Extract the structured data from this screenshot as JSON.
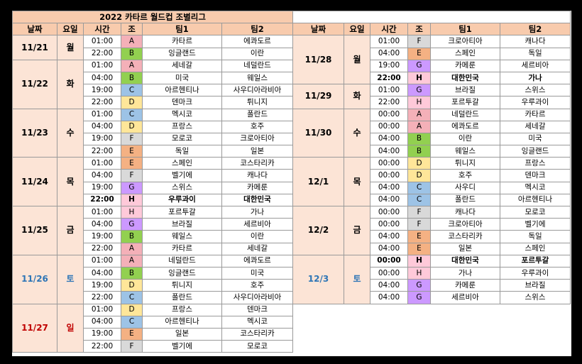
{
  "title": "2022 카타르 월드컵 조별리그",
  "headers": [
    "날짜",
    "요일",
    "시간",
    "조",
    "팀1",
    "팀2"
  ],
  "colors": {
    "A": "#f4b0b8",
    "B": "#92d050",
    "C": "#9dc3e6",
    "D": "#ffe699",
    "E": "#f4b183",
    "F": "#d9d9d9",
    "G": "#cc99ff",
    "H": "#ffc9d9",
    "saturday": "#2e75b6",
    "sunday": "#c00000",
    "header_bg": "#f8cbad",
    "date_bg": "#fce4d6"
  },
  "left": [
    {
      "date": "11/21",
      "day": "월",
      "color": "default",
      "matches": [
        {
          "time": "01:00",
          "group": "A",
          "team1": "카타르",
          "team2": "에콰도르"
        },
        {
          "time": "22:00",
          "group": "B",
          "team1": "잉글랜드",
          "team2": "이란"
        }
      ]
    },
    {
      "date": "11/22",
      "day": "화",
      "color": "default",
      "matches": [
        {
          "time": "01:00",
          "group": "A",
          "team1": "세네갈",
          "team2": "네덜란드"
        },
        {
          "time": "04:00",
          "group": "B",
          "team1": "미국",
          "team2": "웨일스"
        },
        {
          "time": "19:00",
          "group": "C",
          "team1": "아르헨티나",
          "team2": "사우디아라비아"
        },
        {
          "time": "22:00",
          "group": "D",
          "team1": "덴마크",
          "team2": "튀니지"
        }
      ]
    },
    {
      "date": "11/23",
      "day": "수",
      "color": "default",
      "matches": [
        {
          "time": "01:00",
          "group": "C",
          "team1": "멕시코",
          "team2": "폴란드"
        },
        {
          "time": "04:00",
          "group": "D",
          "team1": "프랑스",
          "team2": "호주"
        },
        {
          "time": "19:00",
          "group": "F",
          "team1": "모로코",
          "team2": "크로아티아"
        },
        {
          "time": "22:00",
          "group": "E",
          "team1": "독일",
          "team2": "일본"
        }
      ]
    },
    {
      "date": "11/24",
      "day": "목",
      "color": "default",
      "matches": [
        {
          "time": "01:00",
          "group": "E",
          "team1": "스페인",
          "team2": "코스타리카"
        },
        {
          "time": "04:00",
          "group": "F",
          "team1": "벨기에",
          "team2": "캐나다"
        },
        {
          "time": "19:00",
          "group": "G",
          "team1": "스위스",
          "team2": "카메룬"
        },
        {
          "time": "22:00",
          "group": "H",
          "team1": "우루과이",
          "team2": "대한민국",
          "bold": true
        }
      ]
    },
    {
      "date": "11/25",
      "day": "금",
      "color": "default",
      "matches": [
        {
          "time": "01:00",
          "group": "H",
          "team1": "포르투갈",
          "team2": "가나"
        },
        {
          "time": "04:00",
          "group": "G",
          "team1": "브라질",
          "team2": "세르비아"
        },
        {
          "time": "19:00",
          "group": "B",
          "team1": "웨일스",
          "team2": "이란"
        },
        {
          "time": "22:00",
          "group": "A",
          "team1": "카타르",
          "team2": "세네갈"
        }
      ]
    },
    {
      "date": "11/26",
      "day": "토",
      "color": "saturday",
      "matches": [
        {
          "time": "01:00",
          "group": "A",
          "team1": "네덜란드",
          "team2": "에콰도르"
        },
        {
          "time": "04:00",
          "group": "B",
          "team1": "잉글랜드",
          "team2": "미국"
        },
        {
          "time": "19:00",
          "group": "D",
          "team1": "튀니지",
          "team2": "호주"
        },
        {
          "time": "22:00",
          "group": "C",
          "team1": "폴란드",
          "team2": "사우디아라비아"
        }
      ]
    },
    {
      "date": "11/27",
      "day": "일",
      "color": "sunday",
      "matches": [
        {
          "time": "01:00",
          "group": "D",
          "team1": "프랑스",
          "team2": "덴마크"
        },
        {
          "time": "04:00",
          "group": "C",
          "team1": "아르헨티나",
          "team2": "멕시코"
        },
        {
          "time": "19:00",
          "group": "E",
          "team1": "일본",
          "team2": "코스타리카"
        },
        {
          "time": "22:00",
          "group": "F",
          "team1": "벨기에",
          "team2": "모로코"
        }
      ]
    }
  ],
  "right": [
    {
      "date": "11/28",
      "day": "월",
      "color": "default",
      "matches": [
        {
          "time": "01:00",
          "group": "F",
          "team1": "크로아티아",
          "team2": "캐나다"
        },
        {
          "time": "04:00",
          "group": "E",
          "team1": "스페인",
          "team2": "독일"
        },
        {
          "time": "19:00",
          "group": "G",
          "team1": "카메룬",
          "team2": "세르비아"
        },
        {
          "time": "22:00",
          "group": "H",
          "team1": "대한민국",
          "team2": "가나",
          "bold": true
        }
      ]
    },
    {
      "date": "11/29",
      "day": "화",
      "color": "default",
      "matches": [
        {
          "time": "01:00",
          "group": "G",
          "team1": "브라질",
          "team2": "스위스"
        },
        {
          "time": "22:00",
          "group": "H",
          "team1": "포르투갈",
          "team2": "우루과이"
        }
      ]
    },
    {
      "date": "11/30",
      "day": "수",
      "color": "default",
      "matches": [
        {
          "time": "00:00",
          "group": "A",
          "team1": "네덜란드",
          "team2": "카타르"
        },
        {
          "time": "00:00",
          "group": "A",
          "team1": "에콰도르",
          "team2": "세네갈"
        },
        {
          "time": "04:00",
          "group": "B",
          "team1": "이란",
          "team2": "미국"
        },
        {
          "time": "04:00",
          "group": "B",
          "team1": "웨일스",
          "team2": "잉글랜드"
        }
      ]
    },
    {
      "date": "12/1",
      "day": "목",
      "color": "default",
      "matches": [
        {
          "time": "00:00",
          "group": "D",
          "team1": "튀니지",
          "team2": "프랑스"
        },
        {
          "time": "00:00",
          "group": "D",
          "team1": "호주",
          "team2": "덴마크"
        },
        {
          "time": "04:00",
          "group": "C",
          "team1": "사우디",
          "team2": "멕시코"
        },
        {
          "time": "04:00",
          "group": "C",
          "team1": "폴란드",
          "team2": "아르헨티나"
        }
      ]
    },
    {
      "date": "12/2",
      "day": "금",
      "color": "default",
      "matches": [
        {
          "time": "00:00",
          "group": "F",
          "team1": "캐나다",
          "team2": "모로코"
        },
        {
          "time": "00:00",
          "group": "F",
          "team1": "크로아티아",
          "team2": "벨기에"
        },
        {
          "time": "04:00",
          "group": "E",
          "team1": "코스타리카",
          "team2": "독일"
        },
        {
          "time": "04:00",
          "group": "E",
          "team1": "일본",
          "team2": "스페인"
        }
      ]
    },
    {
      "date": "12/3",
      "day": "토",
      "color": "saturday",
      "matches": [
        {
          "time": "00:00",
          "group": "H",
          "team1": "대한민국",
          "team2": "포르투갈",
          "bold": true
        },
        {
          "time": "00:00",
          "group": "H",
          "team1": "가나",
          "team2": "우루과이"
        },
        {
          "time": "04:00",
          "group": "G",
          "team1": "카메룬",
          "team2": "브라질"
        },
        {
          "time": "04:00",
          "group": "G",
          "team1": "세르비아",
          "team2": "스위스"
        }
      ]
    }
  ]
}
